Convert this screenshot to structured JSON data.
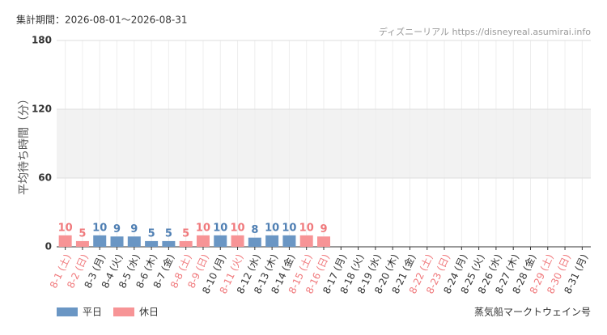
{
  "chart_data": {
    "type": "bar",
    "period": "集計期間：2026-08-01～2026-08-31",
    "source": "ディズニーリアル https://disneyreal.asumirai.info",
    "y_label": "平均待ち時間（分）",
    "attraction": "蒸気船マークトウェイン号",
    "categories": [
      "8-1 (土)",
      "8-2 (日)",
      "8-3 (月)",
      "8-4 (火)",
      "8-5 (水)",
      "8-6 (木)",
      "8-7 (金)",
      "8-8 (土)",
      "8-9 (日)",
      "8-10 (月)",
      "8-11 (火)",
      "8-12 (水)",
      "8-13 (木)",
      "8-14 (金)",
      "8-15 (土)",
      "8-16 (日)",
      "8-17 (月)",
      "8-18 (火)",
      "8-19 (水)",
      "8-20 (木)",
      "8-21 (金)",
      "8-22 (土)",
      "8-23 (日)",
      "8-24 (月)",
      "8-25 (火)",
      "8-26 (水)",
      "8-27 (木)",
      "8-28 (金)",
      "8-29 (土)",
      "8-30 (日)",
      "8-31 (月)"
    ],
    "holiday": [
      true,
      true,
      false,
      false,
      false,
      false,
      false,
      true,
      true,
      false,
      true,
      false,
      false,
      false,
      true,
      true,
      false,
      false,
      false,
      false,
      false,
      true,
      true,
      false,
      false,
      false,
      false,
      false,
      true,
      true,
      false
    ],
    "series": [
      {
        "name": "平日",
        "color": "#6a96c4",
        "label_color": "#4f7fb3",
        "values": [
          null,
          null,
          10,
          9,
          9,
          5,
          5,
          null,
          null,
          10,
          null,
          8,
          10,
          10,
          null,
          null,
          null,
          null,
          null,
          null,
          null,
          null,
          null,
          null,
          null,
          null,
          null,
          null,
          null,
          null,
          null
        ]
      },
      {
        "name": "休日",
        "color": "#f79496",
        "label_color": "#f0797c",
        "values": [
          10,
          5,
          null,
          null,
          null,
          null,
          null,
          5,
          10,
          null,
          10,
          null,
          null,
          null,
          10,
          9,
          null,
          null,
          null,
          null,
          null,
          null,
          null,
          null,
          null,
          null,
          null,
          null,
          null,
          null,
          null
        ]
      }
    ],
    "ylim": [
      0,
      180
    ],
    "yticks": [
      0,
      60,
      120,
      180
    ],
    "band": [
      60,
      120
    ],
    "grid": true
  }
}
